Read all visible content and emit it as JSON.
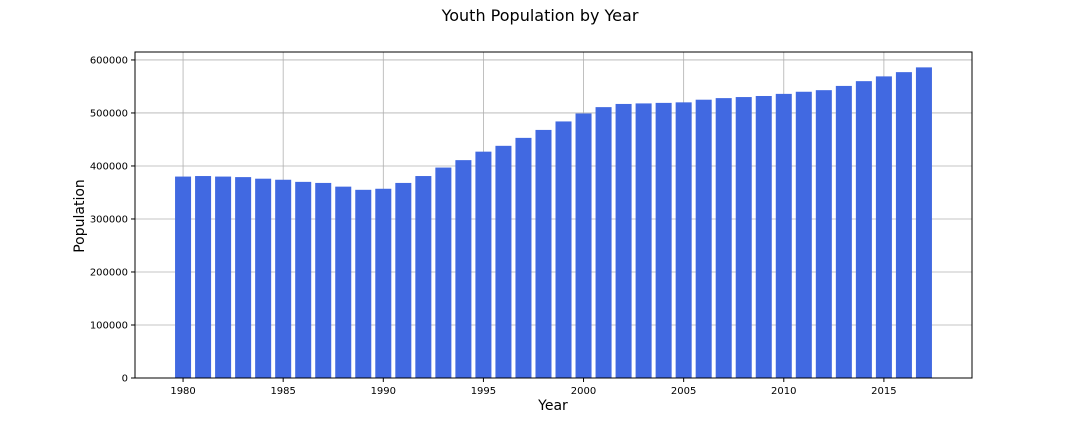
{
  "chart_data": {
    "type": "bar",
    "title": "Youth Population by Year",
    "xlabel": "Year",
    "ylabel": "Population",
    "bar_color": "#4169E1",
    "grid": true,
    "xlim": [
      1977.6,
      2019.4
    ],
    "ylim": [
      0,
      615000
    ],
    "xticks": [
      1980,
      1985,
      1990,
      1995,
      2000,
      2005,
      2010,
      2015
    ],
    "yticks": [
      0,
      100000,
      200000,
      300000,
      400000,
      500000,
      600000
    ],
    "x": [
      1980,
      1981,
      1982,
      1983,
      1984,
      1985,
      1986,
      1987,
      1988,
      1989,
      1990,
      1991,
      1992,
      1993,
      1994,
      1995,
      1996,
      1997,
      1998,
      1999,
      2000,
      2001,
      2002,
      2003,
      2004,
      2005,
      2006,
      2007,
      2008,
      2009,
      2010,
      2011,
      2012,
      2013,
      2014,
      2015,
      2016,
      2017
    ],
    "values": [
      380000,
      381000,
      380000,
      379000,
      376000,
      374000,
      370000,
      368000,
      361000,
      355000,
      357000,
      368000,
      381000,
      397000,
      411000,
      427000,
      438000,
      453000,
      468000,
      484000,
      499000,
      511000,
      517000,
      518000,
      519000,
      520000,
      525000,
      528000,
      530000,
      532000,
      536000,
      540000,
      543000,
      551000,
      560000,
      569000,
      577000,
      586000
    ]
  }
}
